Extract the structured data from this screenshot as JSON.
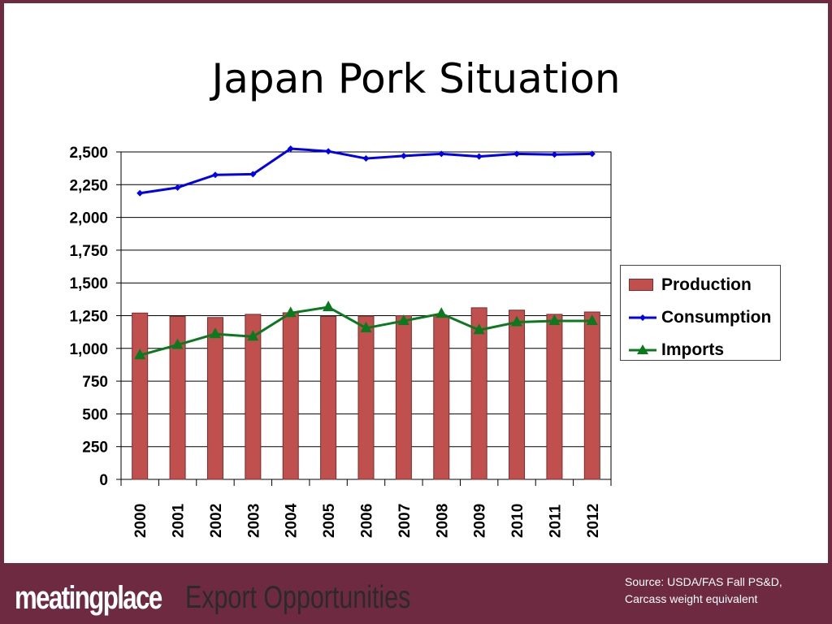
{
  "slide": {
    "title": "Japan Pork Situation",
    "footer_logo": "meatingplace",
    "footer_tagline": "Export Opportunities",
    "source_line1": "Source: USDA/FAS Fall PS&D,",
    "source_line2": "Carcass weight equivalent"
  },
  "colors": {
    "production": "#c0504d",
    "consumption": "#0000ee",
    "imports": "#0a7a1e",
    "frame": "#6e2a41"
  },
  "chart_data": {
    "type": "bar",
    "title": "",
    "xlabel": "",
    "ylabel": "",
    "ylim": [
      0,
      2500
    ],
    "yticks": [
      "0",
      "250",
      "500",
      "750",
      "1,000",
      "1,250",
      "1,500",
      "1,750",
      "2,000",
      "2,250",
      "2,500"
    ],
    "categories": [
      "2000",
      "2001",
      "2002",
      "2003",
      "2004",
      "2005",
      "2006",
      "2007",
      "2008",
      "2009",
      "2010",
      "2011",
      "2012"
    ],
    "grid": true,
    "legend_position": "right",
    "series": [
      {
        "name": "Production",
        "type": "bar",
        "values": [
          1270,
          1245,
          1236,
          1260,
          1272,
          1245,
          1247,
          1250,
          1250,
          1310,
          1292,
          1260,
          1278
        ]
      },
      {
        "name": "Consumption",
        "type": "line",
        "marker": "diamond",
        "values": [
          2185,
          2228,
          2325,
          2330,
          2525,
          2505,
          2450,
          2470,
          2485,
          2465,
          2485,
          2480,
          2485
        ]
      },
      {
        "name": "Imports",
        "type": "line",
        "marker": "triangle",
        "values": [
          948,
          1027,
          1110,
          1090,
          1270,
          1315,
          1155,
          1210,
          1265,
          1140,
          1200,
          1210,
          1210
        ]
      }
    ]
  }
}
